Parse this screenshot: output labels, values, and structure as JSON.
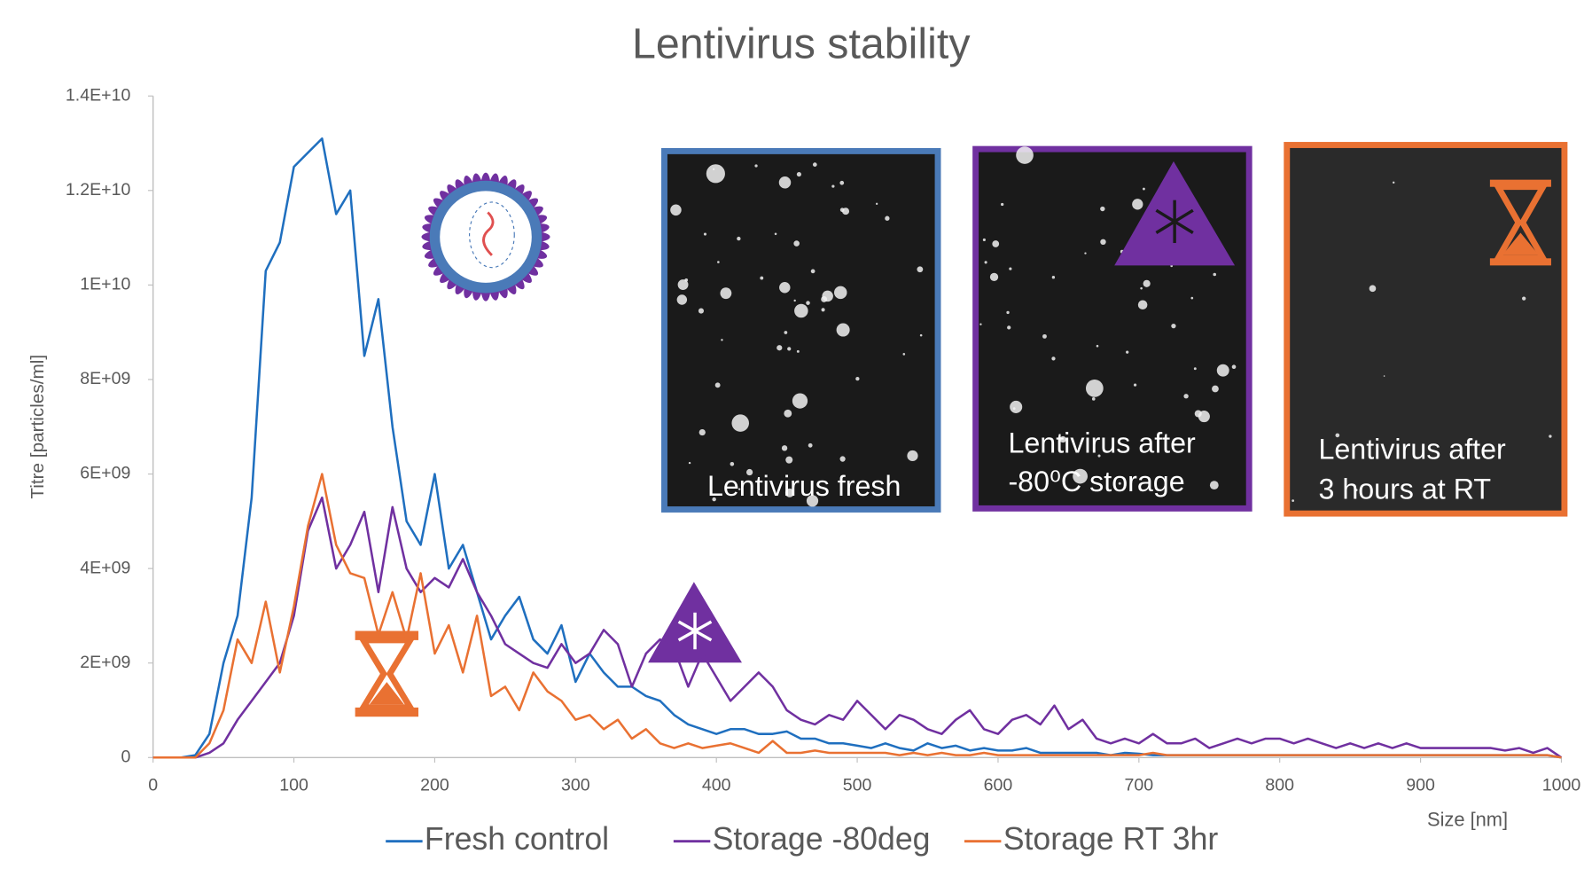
{
  "chart_data": {
    "type": "line",
    "title": "Lentivirus stability",
    "x_label": "Size [nm]",
    "y_label": "Titre [particles/ml]",
    "xlim": [
      0,
      1000
    ],
    "ylim": [
      0,
      14000000000.0
    ],
    "xticks": [
      0,
      100,
      200,
      300,
      400,
      500,
      600,
      700,
      800,
      900,
      1000
    ],
    "yticks": [
      0,
      {
        "value": 2000000000.0,
        "label": "2E+09"
      },
      {
        "value": 4000000000.0,
        "label": "4E+09"
      },
      {
        "value": 6000000000.0,
        "label": "6E+09"
      },
      {
        "value": 8000000000.0,
        "label": "8E+09"
      },
      {
        "value": 10000000000.0,
        "label": "1E+10"
      },
      {
        "value": 12000000000.0,
        "label": "1.2E+10"
      },
      {
        "value": 14000000000.0,
        "label": "1.4E+10"
      }
    ],
    "legend": "bottom",
    "annotations": [
      "Lentivirus fresh",
      "Lentivirus after",
      "-80⁰C storage",
      "Lentivirus after",
      "3 hours at RT"
    ],
    "x": [
      0,
      10,
      20,
      30,
      40,
      50,
      60,
      70,
      80,
      90,
      100,
      110,
      120,
      130,
      140,
      150,
      160,
      170,
      180,
      190,
      200,
      210,
      220,
      230,
      240,
      250,
      260,
      270,
      280,
      290,
      300,
      310,
      320,
      330,
      340,
      350,
      360,
      370,
      380,
      390,
      400,
      410,
      420,
      430,
      440,
      450,
      460,
      470,
      480,
      490,
      500,
      510,
      520,
      530,
      540,
      550,
      560,
      570,
      580,
      590,
      600,
      610,
      620,
      630,
      640,
      650,
      660,
      670,
      680,
      690,
      700,
      710,
      720,
      730,
      740,
      750,
      760,
      770,
      780,
      790,
      800,
      810,
      820,
      830,
      840,
      850,
      860,
      870,
      880,
      890,
      900,
      910,
      920,
      930,
      940,
      950,
      960,
      970,
      980,
      990,
      1000
    ],
    "series": [
      {
        "name": "Fresh control",
        "color": "#1f6fbf",
        "values": [
          0,
          0,
          0,
          50000000.0,
          500000000.0,
          2000000000.0,
          3000000000.0,
          5500000000.0,
          10300000000.0,
          10900000000.0,
          12500000000.0,
          12800000000.0,
          13100000000.0,
          11500000000.0,
          12000000000.0,
          8500000000.0,
          9700000000.0,
          7000000000.0,
          5000000000.0,
          4500000000.0,
          6000000000.0,
          4000000000.0,
          4500000000.0,
          3500000000.0,
          2500000000.0,
          3000000000.0,
          3400000000.0,
          2500000000.0,
          2200000000.0,
          2800000000.0,
          1600000000.0,
          2200000000.0,
          1800000000.0,
          1500000000.0,
          1500000000.0,
          1300000000.0,
          1200000000.0,
          900000000.0,
          700000000.0,
          600000000.0,
          500000000.0,
          600000000.0,
          600000000.0,
          500000000.0,
          500000000.0,
          550000000.0,
          400000000.0,
          400000000.0,
          300000000.0,
          300000000.0,
          250000000.0,
          200000000.0,
          300000000.0,
          200000000.0,
          150000000.0,
          300000000.0,
          200000000.0,
          250000000.0,
          150000000.0,
          200000000.0,
          150000000.0,
          150000000.0,
          200000000.0,
          100000000.0,
          100000000.0,
          100000000.0,
          100000000.0,
          100000000.0,
          50000000.0,
          100000000.0,
          80000000.0,
          50000000.0,
          50000000.0,
          50000000.0,
          50000000.0,
          50000000.0,
          50000000.0,
          50000000.0,
          50000000.0,
          50000000.0,
          50000000.0,
          50000000.0,
          50000000.0,
          50000000.0,
          50000000.0,
          50000000.0,
          50000000.0,
          50000000.0,
          50000000.0,
          50000000.0,
          50000000.0,
          50000000.0,
          50000000.0,
          50000000.0,
          50000000.0,
          50000000.0,
          50000000.0,
          50000000.0,
          50000000.0,
          50000000.0,
          0
        ]
      },
      {
        "name": "Storage -80deg",
        "color": "#7030a0",
        "values": [
          0,
          0,
          0,
          0,
          100000000.0,
          300000000.0,
          800000000.0,
          1200000000.0,
          1600000000.0,
          2000000000.0,
          3000000000.0,
          4800000000.0,
          5500000000.0,
          4000000000.0,
          4500000000.0,
          5200000000.0,
          3500000000.0,
          5300000000.0,
          4000000000.0,
          3500000000.0,
          3800000000.0,
          3600000000.0,
          4200000000.0,
          3500000000.0,
          3000000000.0,
          2400000000.0,
          2200000000.0,
          2000000000.0,
          1900000000.0,
          2400000000.0,
          2000000000.0,
          2200000000.0,
          2700000000.0,
          2400000000.0,
          1500000000.0,
          2200000000.0,
          2500000000.0,
          2300000000.0,
          1500000000.0,
          2200000000.0,
          1700000000.0,
          1200000000.0,
          1500000000.0,
          1800000000.0,
          1500000000.0,
          1000000000.0,
          800000000.0,
          700000000.0,
          900000000.0,
          800000000.0,
          1200000000.0,
          900000000.0,
          600000000.0,
          900000000.0,
          800000000.0,
          600000000.0,
          500000000.0,
          800000000.0,
          1000000000.0,
          600000000.0,
          500000000.0,
          800000000.0,
          900000000.0,
          700000000.0,
          1100000000.0,
          600000000.0,
          800000000.0,
          400000000.0,
          300000000.0,
          400000000.0,
          300000000.0,
          500000000.0,
          300000000.0,
          300000000.0,
          400000000.0,
          200000000.0,
          300000000.0,
          400000000.0,
          300000000.0,
          400000000.0,
          400000000.0,
          300000000.0,
          400000000.0,
          300000000.0,
          200000000.0,
          300000000.0,
          200000000.0,
          300000000.0,
          200000000.0,
          300000000.0,
          200000000.0,
          200000000.0,
          200000000.0,
          200000000.0,
          200000000.0,
          200000000.0,
          150000000.0,
          200000000.0,
          100000000.0,
          200000000.0,
          0
        ]
      },
      {
        "name": "Storage RT 3hr",
        "color": "#e97132",
        "values": [
          0,
          0,
          0,
          0,
          300000000.0,
          1000000000.0,
          2500000000.0,
          2000000000.0,
          3300000000.0,
          1800000000.0,
          3200000000.0,
          4900000000.0,
          6000000000.0,
          4500000000.0,
          3900000000.0,
          3800000000.0,
          2600000000.0,
          3500000000.0,
          2500000000.0,
          3900000000.0,
          2200000000.0,
          2800000000.0,
          1800000000.0,
          3000000000.0,
          1300000000.0,
          1500000000.0,
          1000000000.0,
          1800000000.0,
          1400000000.0,
          1200000000.0,
          800000000.0,
          900000000.0,
          600000000.0,
          800000000.0,
          400000000.0,
          600000000.0,
          300000000.0,
          200000000.0,
          300000000.0,
          200000000.0,
          250000000.0,
          300000000.0,
          200000000.0,
          100000000.0,
          350000000.0,
          100000000.0,
          100000000.0,
          150000000.0,
          100000000.0,
          100000000.0,
          100000000.0,
          100000000.0,
          100000000.0,
          50000000.0,
          100000000.0,
          50000000.0,
          100000000.0,
          50000000.0,
          50000000.0,
          100000000.0,
          50000000.0,
          50000000.0,
          50000000.0,
          50000000.0,
          50000000.0,
          50000000.0,
          50000000.0,
          50000000.0,
          50000000.0,
          50000000.0,
          50000000.0,
          100000000.0,
          50000000.0,
          50000000.0,
          50000000.0,
          50000000.0,
          50000000.0,
          50000000.0,
          50000000.0,
          50000000.0,
          50000000.0,
          50000000.0,
          50000000.0,
          50000000.0,
          50000000.0,
          50000000.0,
          50000000.0,
          50000000.0,
          50000000.0,
          50000000.0,
          50000000.0,
          50000000.0,
          50000000.0,
          50000000.0,
          50000000.0,
          50000000.0,
          50000000.0,
          50000000.0,
          50000000.0,
          50000000.0,
          0
        ]
      }
    ]
  }
}
